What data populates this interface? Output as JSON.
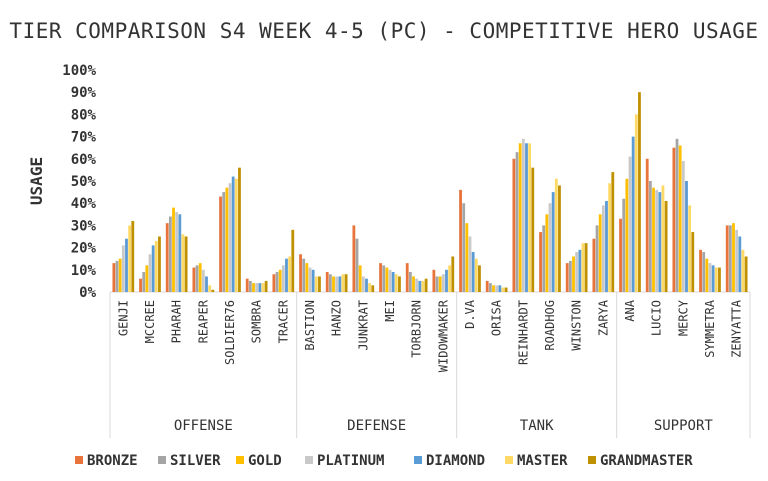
{
  "chart_data": {
    "type": "bar",
    "title": "TIER COMPARISON S4 WEEK 4-5 (PC) - COMPETITIVE HERO USAGE",
    "ylabel": "USAGE",
    "xlabel": "",
    "ylim": [
      0,
      100
    ],
    "y_ticks": [
      "0%",
      "10%",
      "20%",
      "30%",
      "40%",
      "50%",
      "60%",
      "70%",
      "80%",
      "90%",
      "100%"
    ],
    "grid": false,
    "legend_position": "bottom",
    "groups": [
      {
        "name": "OFFENSE",
        "categories": [
          "GENJI",
          "MCCREE",
          "PHARAH",
          "REAPER",
          "SOLDIER76",
          "SOMBRA",
          "TRACER"
        ]
      },
      {
        "name": "DEFENSE",
        "categories": [
          "BASTION",
          "HANZO",
          "JUNKRAT",
          "MEI",
          "TORBJORN",
          "WIDOWMAKER"
        ]
      },
      {
        "name": "TANK",
        "categories": [
          "D.VA",
          "ORISA",
          "REINHARDT",
          "ROADHOG",
          "WINSTON",
          "ZARYA"
        ]
      },
      {
        "name": "SUPPORT",
        "categories": [
          "ANA",
          "LUCIO",
          "MERCY",
          "SYMMETRA",
          "ZENYATTA"
        ]
      }
    ],
    "categories": [
      "GENJI",
      "MCCREE",
      "PHARAH",
      "REAPER",
      "SOLDIER76",
      "SOMBRA",
      "TRACER",
      "BASTION",
      "HANZO",
      "JUNKRAT",
      "MEI",
      "TORBJORN",
      "WIDOWMAKER",
      "D.VA",
      "ORISA",
      "REINHARDT",
      "ROADHOG",
      "WINSTON",
      "ZARYA",
      "ANA",
      "LUCIO",
      "MERCY",
      "SYMMETRA",
      "ZENYATTA"
    ],
    "series": [
      {
        "name": "BRONZE",
        "color": "#E8743B",
        "values": [
          13,
          6,
          31,
          11,
          43,
          6,
          8,
          17,
          9,
          30,
          13,
          13,
          10,
          46,
          5,
          60,
          27,
          13,
          24,
          33,
          60,
          65,
          19,
          30
        ]
      },
      {
        "name": "SILVER",
        "color": "#A5A5A5",
        "values": [
          14,
          9,
          34,
          12,
          45,
          5,
          9,
          15,
          8,
          24,
          12,
          9,
          7,
          40,
          4,
          63,
          30,
          14,
          30,
          42,
          50,
          69,
          18,
          30
        ]
      },
      {
        "name": "GOLD",
        "color": "#FFC000",
        "values": [
          15,
          12,
          38,
          13,
          47,
          4,
          10,
          13,
          7,
          12,
          11,
          7,
          7,
          31,
          3,
          67,
          35,
          16,
          35,
          51,
          47,
          66,
          15,
          31
        ]
      },
      {
        "name": "PLATINUM",
        "color": "#C9C9C9",
        "values": [
          21,
          17,
          36,
          10,
          49,
          4,
          12,
          11,
          7,
          7,
          10,
          6,
          8,
          25,
          3,
          69,
          40,
          18,
          39,
          61,
          46,
          59,
          13,
          28
        ]
      },
      {
        "name": "DIAMOND",
        "color": "#5B9BD5",
        "values": [
          24,
          21,
          35,
          7,
          52,
          4,
          15,
          10,
          7,
          6,
          9,
          5,
          10,
          18,
          3,
          67,
          45,
          19,
          41,
          70,
          45,
          50,
          12,
          25
        ]
      },
      {
        "name": "MASTER",
        "color": "#FFD966",
        "values": [
          30,
          23,
          26,
          3,
          51,
          4,
          16,
          7,
          8,
          4,
          8,
          5,
          12,
          15,
          2,
          67,
          51,
          22,
          49,
          80,
          48,
          39,
          11,
          19
        ]
      },
      {
        "name": "GRANDMASTER",
        "color": "#BF9000",
        "values": [
          32,
          25,
          25,
          1,
          56,
          5,
          28,
          7,
          8,
          3,
          7,
          6,
          16,
          12,
          2,
          56,
          48,
          22,
          54,
          90,
          41,
          27,
          11,
          16
        ]
      }
    ]
  }
}
